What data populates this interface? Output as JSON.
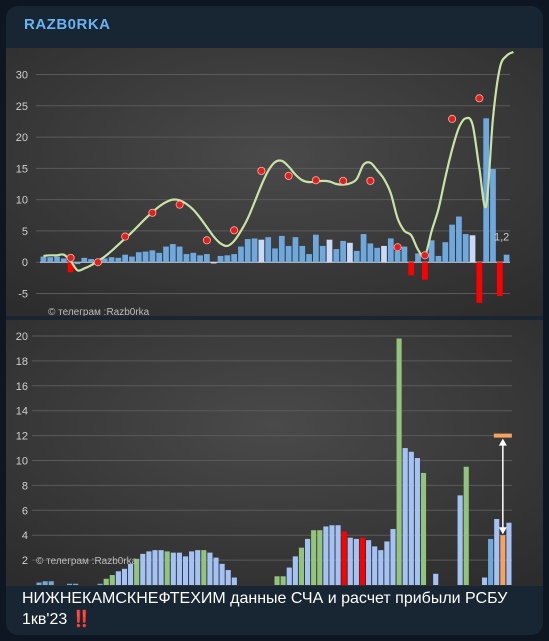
{
  "channel": {
    "name": "RAZB0RKA"
  },
  "caption": {
    "text": "НИЖНЕКАМСКНЕФТЕХИМ данные СЧА и расчет прибыли РСБУ 1кв'23",
    "emoji": "‼️"
  },
  "chart_data": [
    {
      "type": "bar",
      "title": "",
      "watermark": "© телеграм :Razb0rka",
      "ylim": [
        -7,
        32
      ],
      "yticks": [
        -5,
        0,
        5,
        10,
        15,
        20,
        25,
        30
      ],
      "grid": true,
      "annotation": "1,2",
      "bars": [
        0.9,
        0.8,
        0.9,
        0.6,
        -1.6,
        -0.3,
        0.7,
        0.5,
        0.4,
        0.6,
        0.8,
        0.7,
        1.2,
        0.9,
        1.6,
        1.7,
        1.9,
        1.5,
        2.5,
        2.9,
        2.5,
        1.3,
        1.5,
        1.1,
        1.3,
        -0.2,
        1.0,
        1.1,
        1.3,
        2.5,
        3.7,
        3.8,
        3.6,
        4.0,
        2.2,
        4.2,
        2.6,
        4.0,
        2.6,
        1.3,
        4.4,
        2.6,
        3.6,
        2.1,
        3.4,
        3.1,
        1.8,
        4.5,
        3.0,
        2.3,
        2.6,
        3.8,
        1.8,
        2.5,
        -2.1,
        1.4,
        -2.8,
        3.5,
        1.0,
        3.2,
        6.0,
        7.3,
        4.5,
        4.3,
        -6.5,
        23.0,
        14.9,
        -5.4,
        1.2
      ],
      "bar_colors": [
        "#6fa8dc",
        "#6fa8dc",
        "#6fa8dc",
        "#6fa8dc",
        "#ff0000",
        "#6fa8dc",
        "#6fa8dc",
        "#6fa8dc",
        "#6fa8dc",
        "#6fa8dc",
        "#6fa8dc",
        "#6fa8dc",
        "#6fa8dc",
        "#6fa8dc",
        "#6fa8dc",
        "#6fa8dc",
        "#6fa8dc",
        "#6fa8dc",
        "#6fa8dc",
        "#6fa8dc",
        "#6fa8dc",
        "#6fa8dc",
        "#6fa8dc",
        "#6fa8dc",
        "#6fa8dc",
        "#c9daf8",
        "#6fa8dc",
        "#6fa8dc",
        "#6fa8dc",
        "#6fa8dc",
        "#6fa8dc",
        "#6fa8dc",
        "#c9daf8",
        "#6fa8dc",
        "#6fa8dc",
        "#6fa8dc",
        "#6fa8dc",
        "#6fa8dc",
        "#6fa8dc",
        "#6fa8dc",
        "#6fa8dc",
        "#6fa8dc",
        "#c9daf8",
        "#6fa8dc",
        "#6fa8dc",
        "#c9daf8",
        "#6fa8dc",
        "#6fa8dc",
        "#6fa8dc",
        "#6fa8dc",
        "#c9daf8",
        "#6fa8dc",
        "#6fa8dc",
        "#6fa8dc",
        "#ff0000",
        "#6fa8dc",
        "#ff0000",
        "#6fa8dc",
        "#6fa8dc",
        "#6fa8dc",
        "#6fa8dc",
        "#6fa8dc",
        "#6fa8dc",
        "#c9daf8",
        "#ff0000",
        "#6fa8dc",
        "#6fa8dc",
        "#ff0000",
        "#6fa8dc"
      ],
      "line": [
        [
          0,
          1.0
        ],
        [
          1,
          1.1
        ],
        [
          2,
          1.1
        ],
        [
          3,
          1.2
        ],
        [
          4,
          0.2
        ],
        [
          5,
          -1.3
        ],
        [
          6,
          -1.0
        ],
        [
          7,
          -0.5
        ],
        [
          8,
          0.2
        ],
        [
          9,
          0.9
        ],
        [
          10,
          1.8
        ],
        [
          11,
          2.8
        ],
        [
          12,
          3.8
        ],
        [
          13,
          4.8
        ],
        [
          14,
          5.9
        ],
        [
          15,
          7.0
        ],
        [
          16,
          8.0
        ],
        [
          17,
          8.9
        ],
        [
          18,
          9.6
        ],
        [
          19,
          10.0
        ],
        [
          20,
          9.9
        ],
        [
          21,
          9.3
        ],
        [
          22,
          8.4
        ],
        [
          23,
          7.1
        ],
        [
          24,
          5.6
        ],
        [
          25,
          4.1
        ],
        [
          26,
          3.0
        ],
        [
          27,
          2.6
        ],
        [
          28,
          3.4
        ],
        [
          29,
          5.0
        ],
        [
          30,
          7.0
        ],
        [
          31,
          9.6
        ],
        [
          32,
          12.3
        ],
        [
          33,
          14.6
        ],
        [
          34,
          16.0
        ],
        [
          35,
          16.2
        ],
        [
          36,
          15.3
        ],
        [
          37,
          14.0
        ],
        [
          38,
          13.1
        ],
        [
          39,
          12.8
        ],
        [
          40,
          12.9
        ],
        [
          41,
          13.0
        ],
        [
          42,
          12.9
        ],
        [
          43,
          12.5
        ],
        [
          44,
          12.4
        ],
        [
          45,
          12.6
        ],
        [
          46,
          13.3
        ],
        [
          47,
          15.6
        ],
        [
          48,
          15.9
        ],
        [
          49,
          14.7
        ],
        [
          50,
          13.3
        ],
        [
          51,
          11.0
        ],
        [
          52,
          7.0
        ],
        [
          53,
          5.0
        ],
        [
          54,
          4.3
        ],
        [
          55,
          2.0
        ],
        [
          56,
          1.0
        ],
        [
          57,
          5.0
        ],
        [
          58,
          8.5
        ],
        [
          59,
          13.5
        ],
        [
          60,
          18.0
        ],
        [
          61,
          21.5
        ],
        [
          62,
          23.0
        ],
        [
          63,
          22.0
        ],
        [
          64,
          15.0
        ],
        [
          65,
          9.0
        ],
        [
          66,
          23.0
        ],
        [
          67,
          31.0
        ],
        [
          68,
          33.0
        ],
        [
          69,
          34.0
        ]
      ],
      "markers": [
        [
          4,
          0.7
        ],
        [
          8,
          0.0
        ],
        [
          12,
          4.1
        ],
        [
          16,
          7.9
        ],
        [
          20,
          9.2
        ],
        [
          24,
          3.5
        ],
        [
          28,
          5.1
        ],
        [
          32,
          14.6
        ],
        [
          36,
          13.8
        ],
        [
          40,
          13.1
        ],
        [
          44,
          13.0
        ],
        [
          48,
          13.0
        ],
        [
          52,
          2.4
        ],
        [
          56,
          1.1
        ],
        [
          60,
          22.9
        ],
        [
          64,
          26.2
        ]
      ]
    },
    {
      "type": "bar",
      "title": "",
      "watermark": "© телеграм :Razb0rka",
      "ylim": [
        0,
        20
      ],
      "yticks": [
        2,
        4,
        6,
        8,
        10,
        12,
        14,
        16,
        18,
        20
      ],
      "grid": true,
      "bars": [
        0.2,
        0.3,
        0.3,
        0.0,
        0.0,
        0.1,
        0.1,
        0.0,
        0.0,
        0.0,
        0.1,
        0.5,
        0.8,
        1.1,
        1.3,
        1.7,
        2.1,
        2.5,
        2.7,
        2.8,
        2.8,
        2.7,
        2.6,
        2.6,
        2.3,
        2.7,
        2.8,
        2.8,
        2.6,
        2.2,
        1.7,
        1.2,
        0.6,
        0.0,
        0.0,
        0.0,
        0.0,
        0.0,
        0.0,
        0.7,
        0.7,
        1.4,
        2.3,
        3.0,
        3.7,
        4.4,
        4.4,
        4.7,
        4.8,
        4.8,
        4.3,
        3.8,
        3.7,
        3.8,
        3.6,
        3.1,
        2.8,
        3.5,
        4.5,
        19.8,
        11.0,
        10.7,
        10.2,
        9.0,
        0.0,
        0.9,
        0.0,
        0.0,
        0.0,
        7.2,
        9.5,
        0.0,
        0.0,
        0.6,
        3.7,
        5.3,
        4.0,
        5.0
      ],
      "bar_colors": [
        "#6fa8dc",
        "#6fa8dc",
        "#6fa8dc",
        "#6fa8dc",
        "#6fa8dc",
        "#6fa8dc",
        "#6fa8dc",
        "#6fa8dc",
        "#6fa8dc",
        "#6fa8dc",
        "#6fa8dc",
        "#93c47d",
        "#93c47d",
        "#a4c2f4",
        "#a4c2f4",
        "#a4c2f4",
        "#93c47d",
        "#a4c2f4",
        "#a4c2f4",
        "#a4c2f4",
        "#a4c2f4",
        "#93c47d",
        "#a4c2f4",
        "#a4c2f4",
        "#a4c2f4",
        "#a4c2f4",
        "#a4c2f4",
        "#93c47d",
        "#a4c2f4",
        "#a4c2f4",
        "#a4c2f4",
        "#a4c2f4",
        "#a4c2f4",
        "#a4c2f4",
        "#a4c2f4",
        "#a4c2f4",
        "#a4c2f4",
        "#a4c2f4",
        "#a4c2f4",
        "#93c47d",
        "#93c47d",
        "#a4c2f4",
        "#a4c2f4",
        "#93c47d",
        "#a4c2f4",
        "#93c47d",
        "#93c47d",
        "#a4c2f4",
        "#a4c2f4",
        "#a4c2f4",
        "#ff0000",
        "#a4c2f4",
        "#a4c2f4",
        "#ff0000",
        "#a4c2f4",
        "#a4c2f4",
        "#a4c2f4",
        "#a4c2f4",
        "#a4c2f4",
        "#93c47d",
        "#a4c2f4",
        "#a4c2f4",
        "#a4c2f4",
        "#93c47d",
        "#a4c2f4",
        "#a4c2f4",
        "#a4c2f4",
        "#a4c2f4",
        "#a4c2f4",
        "#a4c2f4",
        "#93c47d",
        "#a4c2f4",
        "#a4c2f4",
        "#a4c2f4",
        "#6fa8dc",
        "#a4c2f4",
        "#f4a460",
        "#a4c2f4"
      ],
      "target": {
        "index": 76,
        "from": 4.0,
        "to": 12.0,
        "color": "#f4a460"
      }
    }
  ]
}
